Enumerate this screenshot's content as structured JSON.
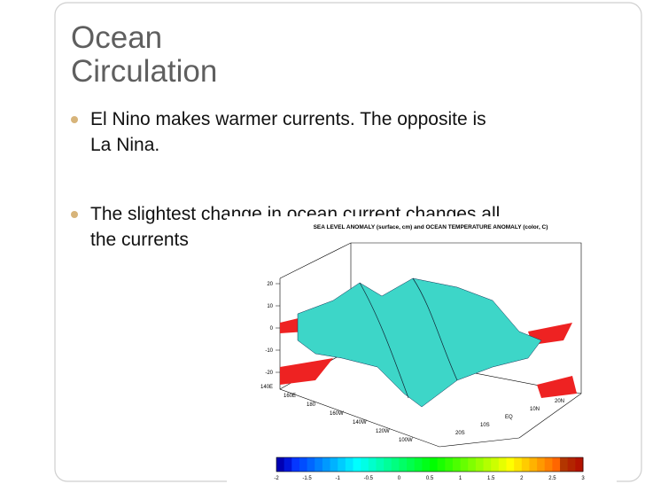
{
  "slide": {
    "title": [
      "Ocean",
      "Circulation"
    ],
    "bullets": [
      [
        "El Nino makes warmer currents. The opposite is",
        "La Nina."
      ],
      [
        "The slightest change in ocean current changes all",
        "the currents"
      ]
    ],
    "figure": {
      "title": "SEA LEVEL ANOMALY (surface, cm) and OCEAN TEMPERATURE ANOMALY (color, C)",
      "z_ticks": [
        "20",
        "10",
        "0",
        "-10",
        "-20"
      ],
      "lon_labels": [
        "140E",
        "160E",
        "180",
        "160W",
        "140W",
        "120W",
        "100W"
      ],
      "lat_labels": [
        "20N",
        "10N",
        "EQ",
        "10S",
        "20S"
      ],
      "colorbar_ticks": [
        "-2",
        "-1.5",
        "-1",
        "-0.5",
        "0",
        "0.5",
        "1",
        "1.5",
        "2",
        "2.5",
        "3"
      ]
    }
  }
}
